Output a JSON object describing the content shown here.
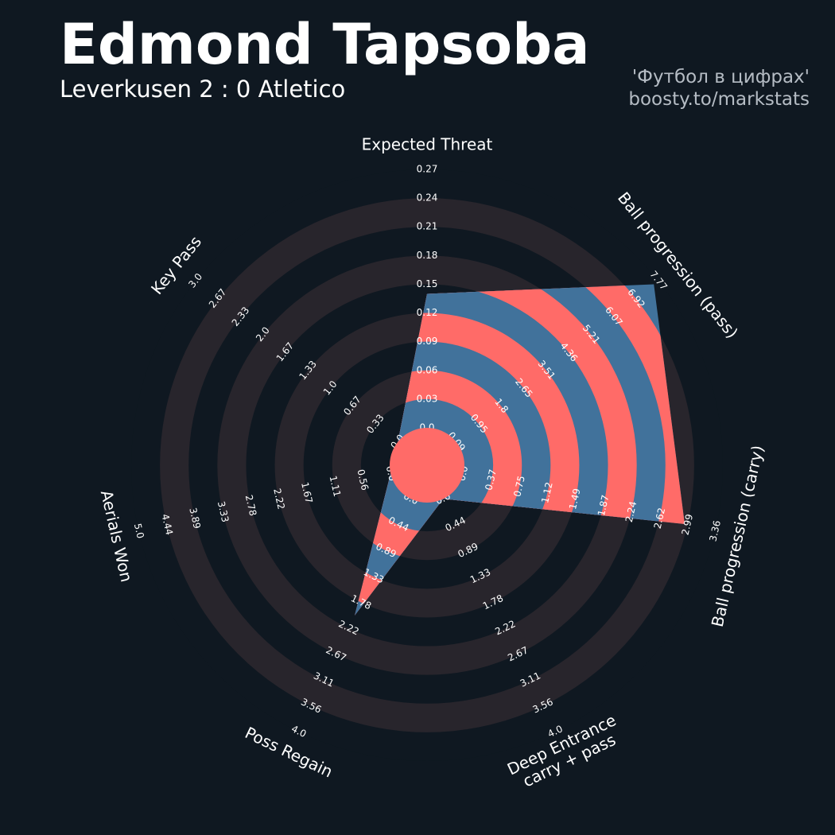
{
  "chart_data": {
    "type": "radar",
    "title": "Edmond Tapsoba",
    "subtitle": "Leverkusen 2 : 0 Atletico",
    "credits": [
      "'Футбол в цифрах'",
      "boosty.to/markstats"
    ],
    "colors": {
      "polygon_ring": "#ff6b68",
      "polygon_gap": "#41729b",
      "ring": "#28252c",
      "gap": "#0f1821",
      "center": "#ff6b68"
    },
    "params": [
      {
        "name": "Expected Threat",
        "lim": [
          0,
          0.27
        ],
        "value": 0.14,
        "ticks": [
          {
            "value": 0,
            "label": "0.0"
          },
          0.03,
          0.06,
          0.09,
          0.12,
          0.15,
          0.18,
          0.21,
          0.24,
          0.27
        ]
      },
      {
        "name": "Ball progression (pass)",
        "lim": [
          0.09,
          7.77
        ],
        "value": 7.6,
        "ticks": [
          0.09,
          0.95,
          1.8,
          2.65,
          3.51,
          4.36,
          5.21,
          6.07,
          6.92,
          7.77
        ]
      },
      {
        "name": "Ball progression (carry)",
        "lim": [
          0,
          3.36
        ],
        "value": 2.95,
        "ticks": [
          {
            "value": 0,
            "label": "0.0"
          },
          0.37,
          0.75,
          1.12,
          1.49,
          1.87,
          2.24,
          2.62,
          2.99,
          3.36
        ]
      },
      {
        "name": "Deep Entrance\ncarry + pass",
        "lim": [
          0,
          4
        ],
        "value": 0,
        "ticks": [
          {
            "value": 0,
            "label": "0.0"
          },
          0.44,
          0.89,
          1.33,
          1.78,
          2.22,
          2.67,
          3.11,
          3.56,
          {
            "value": 4,
            "label": "4.0"
          }
        ]
      },
      {
        "name": "Poss Regain",
        "lim": [
          0,
          4
        ],
        "value": 2.0,
        "ticks": [
          {
            "value": 0,
            "label": "0.0"
          },
          0.44,
          0.89,
          1.33,
          1.78,
          2.22,
          2.67,
          3.11,
          3.56,
          {
            "value": 4,
            "label": "4.0"
          }
        ]
      },
      {
        "name": "Aerials Won",
        "lim": [
          0,
          5
        ],
        "value": 0,
        "ticks": [
          {
            "value": 0,
            "label": "0.0"
          },
          0.56,
          1.11,
          1.67,
          2.22,
          2.78,
          3.33,
          3.89,
          4.44,
          {
            "value": 5,
            "label": "5.0"
          }
        ]
      },
      {
        "name": "Key Pass",
        "lim": [
          0,
          3
        ],
        "value": 0,
        "ticks": [
          {
            "value": 0,
            "label": "0.0"
          },
          0.33,
          0.67,
          {
            "value": 1,
            "label": "1.0"
          },
          1.33,
          1.67,
          {
            "value": 2,
            "label": "2.0"
          },
          2.33,
          2.67,
          {
            "value": 3,
            "label": "3.0"
          }
        ]
      }
    ]
  }
}
